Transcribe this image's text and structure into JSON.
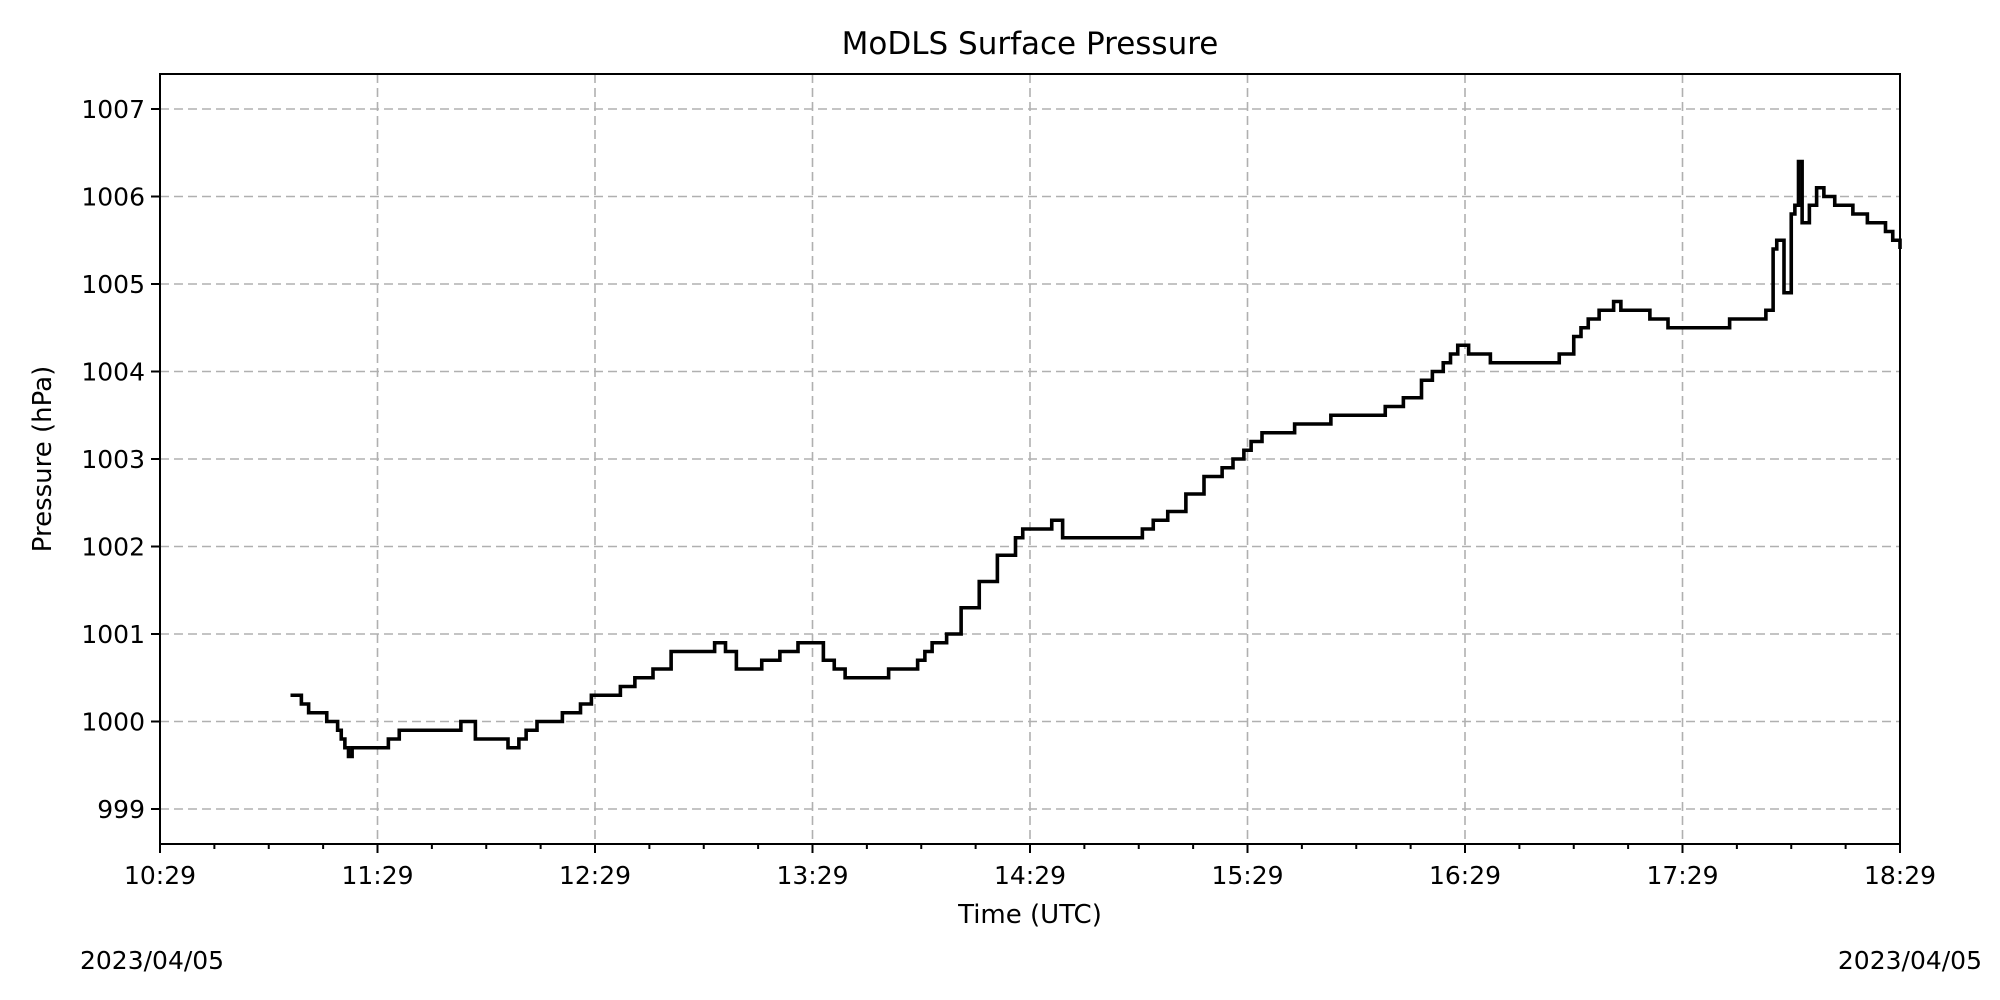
{
  "chart_data": {
    "type": "line",
    "title": "MoDLS Surface Pressure",
    "xlabel": "Time (UTC)",
    "ylabel": "Pressure (hPa)",
    "xlim": [
      "10:29",
      "18:29"
    ],
    "ylim": [
      998.6,
      1007.4
    ],
    "grid": true,
    "x_ticks": [
      "10:29",
      "11:29",
      "12:29",
      "13:29",
      "14:29",
      "15:29",
      "16:29",
      "17:29",
      "18:29"
    ],
    "y_ticks": [
      999,
      1000,
      1001,
      1002,
      1003,
      1004,
      1005,
      1006,
      1007
    ],
    "date_left": "2023/04/05",
    "date_right": "2023/04/05",
    "series": [
      {
        "color": "#000000",
        "x": [
          "11:05",
          "11:08",
          "11:10",
          "11:13",
          "11:15",
          "11:18",
          "11:19",
          "11:20",
          "11:21",
          "11:22",
          "11:24",
          "11:27",
          "11:30",
          "11:32",
          "11:35",
          "11:38",
          "11:40",
          "11:45",
          "11:50",
          "11:52",
          "11:56",
          "12:00",
          "12:05",
          "12:08",
          "12:10",
          "12:13",
          "12:15",
          "12:18",
          "12:20",
          "12:25",
          "12:28",
          "12:30",
          "12:33",
          "12:36",
          "12:40",
          "12:45",
          "12:50",
          "12:55",
          "13:00",
          "13:02",
          "13:05",
          "13:08",
          "13:10",
          "13:15",
          "13:20",
          "13:25",
          "13:28",
          "13:32",
          "13:35",
          "13:38",
          "13:42",
          "13:45",
          "13:50",
          "13:55",
          "13:58",
          "14:00",
          "14:02",
          "14:06",
          "14:10",
          "14:15",
          "14:20",
          "14:25",
          "14:27",
          "14:29",
          "14:32",
          "14:35",
          "14:38",
          "14:41",
          "14:44",
          "14:47",
          "14:50",
          "14:55",
          "15:00",
          "15:03",
          "15:07",
          "15:12",
          "15:17",
          "15:22",
          "15:25",
          "15:28",
          "15:30",
          "15:33",
          "15:36",
          "15:39",
          "15:42",
          "15:45",
          "15:48",
          "15:52",
          "15:57",
          "16:02",
          "16:07",
          "16:12",
          "16:17",
          "16:20",
          "16:23",
          "16:25",
          "16:27",
          "16:30",
          "16:33",
          "16:36",
          "16:41",
          "16:46",
          "16:51",
          "16:55",
          "16:59",
          "17:01",
          "17:03",
          "17:06",
          "17:10",
          "17:12",
          "17:16",
          "17:20",
          "17:25",
          "17:30",
          "17:36",
          "17:42",
          "17:49",
          "17:52",
          "17:54",
          "17:55",
          "17:57",
          "17:59",
          "18:00",
          "18:01",
          "18:02",
          "18:04",
          "18:06",
          "18:08",
          "18:11",
          "18:14",
          "18:16",
          "18:20",
          "18:25",
          "18:27",
          "18:29"
        ],
        "y": [
          1000.3,
          1000.2,
          1000.1,
          1000.1,
          1000.0,
          999.9,
          999.8,
          999.7,
          999.6,
          999.7,
          999.7,
          999.7,
          999.7,
          999.8,
          999.9,
          999.9,
          999.9,
          999.9,
          999.9,
          1000.0,
          999.8,
          999.8,
          999.7,
          999.8,
          999.9,
          1000.0,
          1000.0,
          1000.0,
          1000.1,
          1000.2,
          1000.3,
          1000.3,
          1000.3,
          1000.4,
          1000.5,
          1000.6,
          1000.8,
          1000.8,
          1000.8,
          1000.9,
          1000.8,
          1000.6,
          1000.6,
          1000.7,
          1000.8,
          1000.9,
          1000.9,
          1000.7,
          1000.6,
          1000.5,
          1000.5,
          1000.5,
          1000.6,
          1000.6,
          1000.7,
          1000.8,
          1000.9,
          1001.0,
          1001.3,
          1001.6,
          1001.9,
          1002.1,
          1002.2,
          1002.2,
          1002.2,
          1002.3,
          1002.1,
          1002.1,
          1002.1,
          1002.1,
          1002.1,
          1002.1,
          1002.2,
          1002.3,
          1002.4,
          1002.6,
          1002.8,
          1002.9,
          1003.0,
          1003.1,
          1003.2,
          1003.3,
          1003.3,
          1003.3,
          1003.4,
          1003.4,
          1003.4,
          1003.5,
          1003.5,
          1003.5,
          1003.6,
          1003.7,
          1003.9,
          1004.0,
          1004.1,
          1004.2,
          1004.3,
          1004.2,
          1004.2,
          1004.1,
          1004.1,
          1004.1,
          1004.1,
          1004.2,
          1004.4,
          1004.5,
          1004.6,
          1004.7,
          1004.8,
          1004.7,
          1004.7,
          1004.6,
          1004.5,
          1004.5,
          1004.5,
          1004.6,
          1004.6,
          1004.7,
          1005.4,
          1005.5,
          1004.9,
          1005.8,
          1005.9,
          1006.4,
          1005.7,
          1005.9,
          1006.1,
          1006.0,
          1005.9,
          1005.9,
          1005.8,
          1005.7,
          1005.6,
          1005.5,
          1005.4
        ]
      }
    ]
  }
}
